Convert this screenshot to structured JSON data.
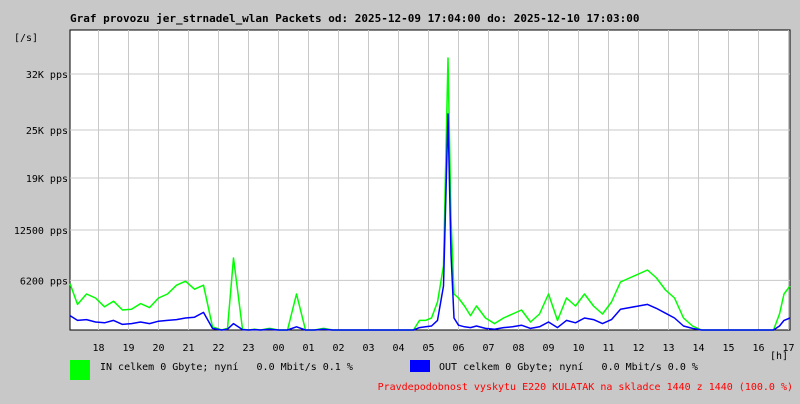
{
  "chart_data": {
    "type": "line",
    "title": "Graf provozu jer_strnadel_wlan Packets od: 2025-12-09 17:04:00 do: 2025-12-10 17:03:00",
    "y_unit": "[/s]",
    "x_unit": "[h]",
    "x_ticks": [
      "18",
      "19",
      "20",
      "21",
      "22",
      "23",
      "00",
      "01",
      "02",
      "03",
      "04",
      "05",
      "06",
      "07",
      "08",
      "09",
      "10",
      "11",
      "12",
      "13",
      "14",
      "15",
      "16",
      "17"
    ],
    "y_ticks": [
      {
        "value": 6200,
        "label": "6200 pps"
      },
      {
        "value": 12500,
        "label": "12500 pps"
      },
      {
        "value": 19000,
        "label": "19K pps"
      },
      {
        "value": 25000,
        "label": "25K pps"
      },
      {
        "value": 32000,
        "label": "32K pps"
      }
    ],
    "ylim": [
      0,
      37500
    ],
    "x_range_hours": [
      17.05,
      41.05
    ],
    "grid": true,
    "series": [
      {
        "name": "IN",
        "color": "#00ff00",
        "x": [
          17.05,
          17.3,
          17.6,
          17.9,
          18.2,
          18.5,
          18.8,
          19.1,
          19.4,
          19.7,
          20.0,
          20.3,
          20.6,
          20.9,
          21.2,
          21.5,
          21.8,
          22.1,
          22.3,
          22.5,
          22.8,
          23.0,
          23.2,
          23.4,
          23.7,
          24.0,
          24.3,
          24.6,
          24.9,
          25.2,
          25.5,
          25.8,
          26.1,
          26.4,
          26.7,
          27.0,
          27.3,
          27.6,
          27.9,
          28.2,
          28.5,
          28.7,
          28.9,
          29.1,
          29.3,
          29.5,
          29.65,
          29.75,
          29.85,
          30.0,
          30.2,
          30.4,
          30.6,
          30.9,
          31.2,
          31.5,
          31.8,
          32.1,
          32.4,
          32.7,
          33.0,
          33.3,
          33.6,
          33.9,
          34.2,
          34.5,
          34.8,
          35.1,
          35.4,
          35.7,
          36.0,
          36.3,
          36.6,
          36.9,
          37.2,
          37.5,
          37.8,
          38.1,
          38.4,
          38.7,
          39.0,
          39.3,
          39.6,
          39.9,
          40.2,
          40.5,
          40.7,
          40.85,
          41.05
        ],
        "values": [
          5800,
          3200,
          4500,
          4000,
          2900,
          3600,
          2500,
          2600,
          3300,
          2800,
          4000,
          4500,
          5600,
          6100,
          5100,
          5600,
          400,
          0,
          200,
          9000,
          100,
          0,
          100,
          0,
          200,
          0,
          0,
          4500,
          0,
          0,
          200,
          0,
          0,
          0,
          0,
          0,
          0,
          0,
          0,
          0,
          0,
          1200,
          1200,
          1500,
          3500,
          8000,
          34000,
          14000,
          4500,
          4000,
          3000,
          1800,
          3000,
          1500,
          800,
          1500,
          2000,
          2500,
          1000,
          2000,
          4500,
          1200,
          4000,
          3000,
          4500,
          3000,
          2000,
          3500,
          6000,
          6500,
          7000,
          7500,
          6500,
          5000,
          4000,
          1500,
          500,
          0,
          0,
          0,
          0,
          0,
          0,
          0,
          0,
          0,
          2000,
          4500,
          5500
        ]
      },
      {
        "name": "OUT",
        "color": "#0000ff",
        "x": [
          17.05,
          17.3,
          17.6,
          17.9,
          18.2,
          18.5,
          18.8,
          19.1,
          19.4,
          19.7,
          20.0,
          20.3,
          20.6,
          20.9,
          21.2,
          21.5,
          21.8,
          22.1,
          22.3,
          22.5,
          22.8,
          23.0,
          23.2,
          23.4,
          23.7,
          24.0,
          24.3,
          24.6,
          24.9,
          25.2,
          25.5,
          25.8,
          26.1,
          26.4,
          26.7,
          27.0,
          27.3,
          27.6,
          27.9,
          28.2,
          28.5,
          28.7,
          28.9,
          29.1,
          29.3,
          29.5,
          29.65,
          29.75,
          29.85,
          30.0,
          30.2,
          30.4,
          30.6,
          30.9,
          31.2,
          31.5,
          31.8,
          32.1,
          32.4,
          32.7,
          33.0,
          33.3,
          33.6,
          33.9,
          34.2,
          34.5,
          34.8,
          35.1,
          35.4,
          35.7,
          36.0,
          36.3,
          36.6,
          36.9,
          37.2,
          37.5,
          37.8,
          38.1,
          38.4,
          38.7,
          39.0,
          39.3,
          39.6,
          39.9,
          40.2,
          40.5,
          40.7,
          40.85,
          41.05
        ],
        "values": [
          1800,
          1200,
          1300,
          1000,
          900,
          1200,
          700,
          800,
          1000,
          800,
          1100,
          1200,
          1300,
          1500,
          1600,
          2200,
          200,
          0,
          100,
          800,
          50,
          0,
          50,
          0,
          100,
          0,
          0,
          400,
          0,
          0,
          100,
          0,
          0,
          0,
          0,
          0,
          0,
          0,
          0,
          0,
          0,
          300,
          400,
          500,
          1200,
          5500,
          27000,
          9500,
          1500,
          600,
          400,
          300,
          500,
          200,
          100,
          300,
          400,
          600,
          200,
          400,
          1000,
          300,
          1200,
          900,
          1500,
          1300,
          800,
          1300,
          2600,
          2800,
          3000,
          3200,
          2700,
          2100,
          1500,
          500,
          200,
          0,
          0,
          0,
          0,
          0,
          0,
          0,
          0,
          0,
          500,
          1200,
          1500
        ]
      }
    ]
  },
  "legend": {
    "in_color": "#00ff00",
    "out_color": "#0000ff",
    "in_text": "IN celkem 0 Gbyte; nyní   0.0 Mbit/s 0.1 %",
    "out_text": "OUT celkem 0 Gbyte; nyní   0.0 Mbit/s 0.0 %"
  },
  "footer": {
    "text": "Pravdepodobnost vyskytu E220 KULATAK na skladce 1440 z 1440 (100.0 %)",
    "color": "#ff0000"
  }
}
